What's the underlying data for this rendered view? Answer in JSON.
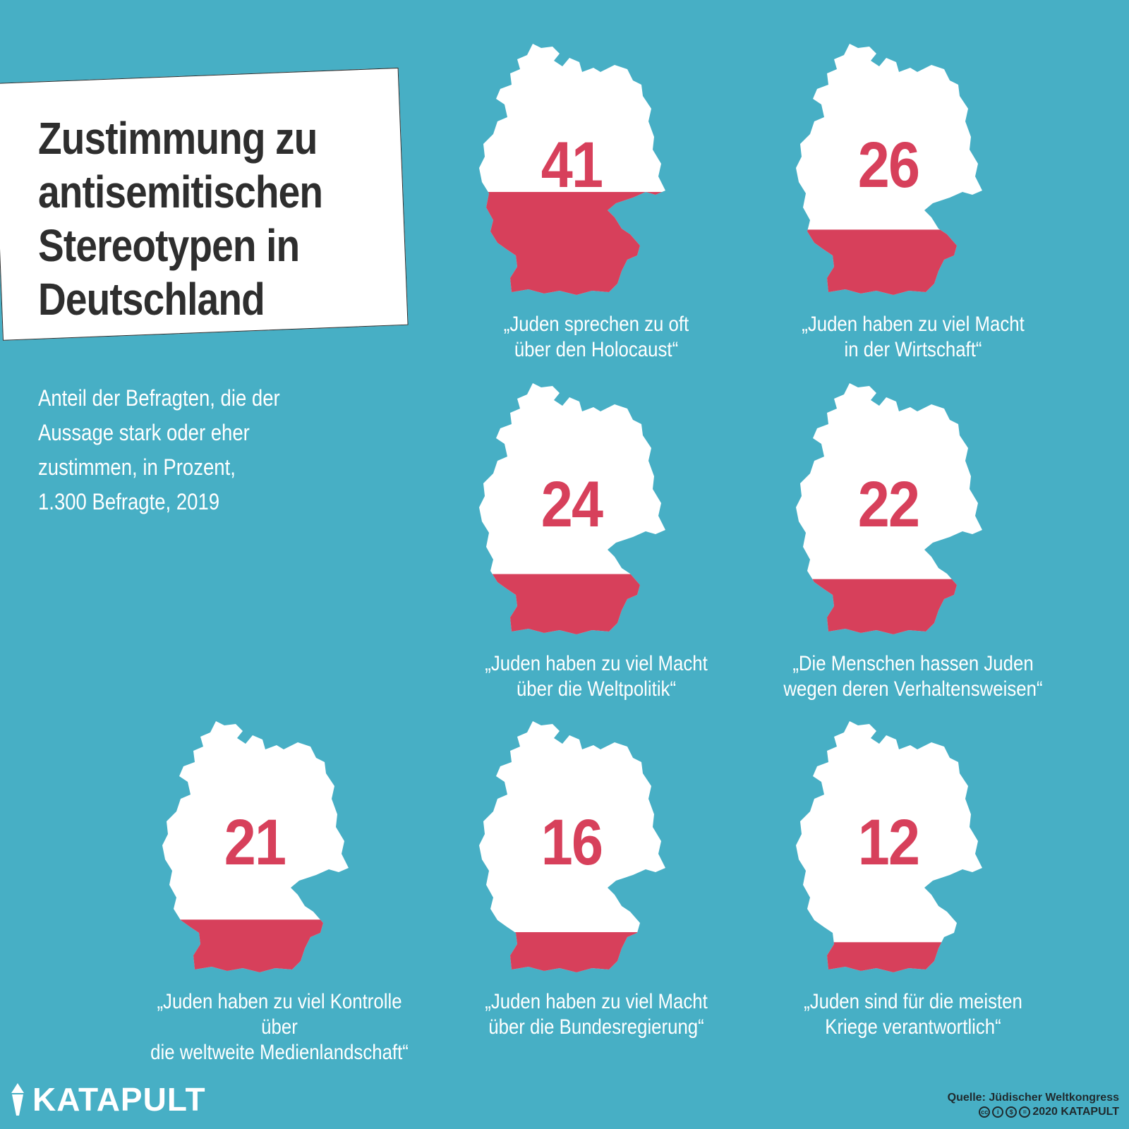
{
  "title": "Zustimmung zu\nantisemitischen\nStereotypen in\nDeutschland",
  "subtitle": "Anteil der Befragten, die der\nAussage stark oder eher\nzustimmen, in Prozent,\n1.300 Befragte, 2019",
  "colors": {
    "background": "#47afc5",
    "fill": "#d7405b",
    "map": "#ffffff"
  },
  "chart_data": {
    "type": "pictogram",
    "title": "Zustimmung zu antisemitischen Stereotypen in Deutschland",
    "unit": "Prozent",
    "items": [
      {
        "value": 41,
        "label_text": "41",
        "caption": "„Juden sprechen zu oft\nüber den Holocaust“"
      },
      {
        "value": 26,
        "label_text": "26",
        "caption": "„Juden haben zu viel Macht\nin der Wirtschaft“"
      },
      {
        "value": 24,
        "label_text": "24",
        "caption": "„Juden haben zu viel Macht\nüber die Weltpolitik“"
      },
      {
        "value": 22,
        "label_text": "22",
        "caption": "„Die Menschen hassen Juden\nwegen deren Verhaltensweisen“"
      },
      {
        "value": 21,
        "label_text": "21",
        "caption": "„Juden haben zu viel Kontrolle über\ndie weltweite Medienlandschaft“"
      },
      {
        "value": 16,
        "label_text": "16",
        "caption": "„Juden haben zu viel Macht\nüber die Bundesregierung“"
      },
      {
        "value": 12,
        "label_text": "12",
        "caption": "„Juden sind für die meisten\nKriege verantwortlich“"
      }
    ]
  },
  "footer": {
    "logo": "KATAPULT",
    "source": "Quelle: Jüdischer Weltkongress",
    "copyright": "2020 KATAPULT"
  }
}
